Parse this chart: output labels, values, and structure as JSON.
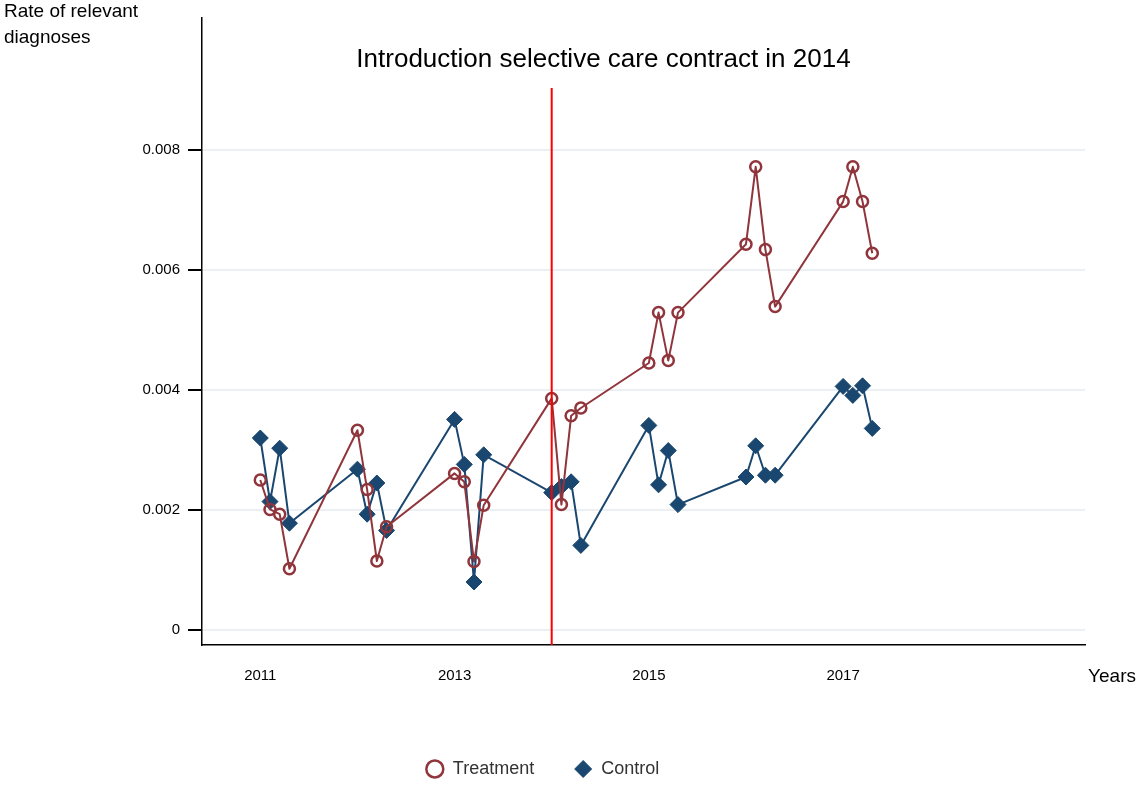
{
  "chart_data": {
    "type": "line",
    "title": "Introduction selective care contract in 2014",
    "xlabel": "Years",
    "ylabel": "Rate of relevant diagnoses",
    "xlim": [
      2010.4,
      2019.49
    ],
    "xticks": [
      2011,
      2013,
      2015,
      2017
    ],
    "ylim": [
      -0.00025,
      0.0102
    ],
    "yticks": [
      0,
      0.002,
      0.004,
      0.006,
      0.008
    ],
    "grid": "y",
    "legend": "bottom",
    "ref_lines": [
      {
        "axis": "x",
        "value": 2014,
        "color": "#ff0000"
      }
    ],
    "series": [
      {
        "name": "Treatment",
        "color": "#90353b",
        "marker": "circle",
        "x": [
          2011,
          2011.1,
          2011.2,
          2011.3,
          2012,
          2012.1,
          2012.2,
          2012.3,
          2013,
          2013.1,
          2013.2,
          2013.3,
          2014,
          2014.1,
          2014.2,
          2014.3,
          2015,
          2015.1,
          2015.2,
          2015.3,
          2016,
          2016.1,
          2016.2,
          2016.3,
          2017,
          2017.1,
          2017.2,
          2017.3
        ],
        "values": [
          0.0025,
          0.00201,
          0.00193,
          0.00102,
          0.00333,
          0.00234,
          0.00115,
          0.00172,
          0.00261,
          0.00247,
          0.00114,
          0.00208,
          0.00386,
          0.00209,
          0.00357,
          0.0037,
          0.00445,
          0.00529,
          0.00449,
          0.00529,
          0.00643,
          0.00772,
          0.00634,
          0.00539,
          0.00714,
          0.00772,
          0.00714,
          0.00628
        ]
      },
      {
        "name": "Control",
        "color": "#1a476f",
        "marker": "diamond",
        "x": [
          2011,
          2011.1,
          2011.2,
          2011.3,
          2012,
          2012.1,
          2012.2,
          2012.3,
          2013,
          2013.1,
          2013.2,
          2013.3,
          2014,
          2014.1,
          2014.2,
          2014.3,
          2015,
          2015.1,
          2015.2,
          2015.3,
          2016,
          2016.1,
          2016.2,
          2016.3,
          2017,
          2017.1,
          2017.2,
          2017.3
        ],
        "values": [
          0.0032,
          0.00214,
          0.00303,
          0.00178,
          0.00268,
          0.00193,
          0.00245,
          0.00166,
          0.00351,
          0.00276,
          0.0008,
          0.00292,
          0.00229,
          0.00239,
          0.00247,
          0.00141,
          0.00341,
          0.00242,
          0.00299,
          0.00209,
          0.00255,
          0.00307,
          0.00258,
          0.00258,
          0.00406,
          0.00391,
          0.00407,
          0.00336
        ]
      }
    ]
  }
}
